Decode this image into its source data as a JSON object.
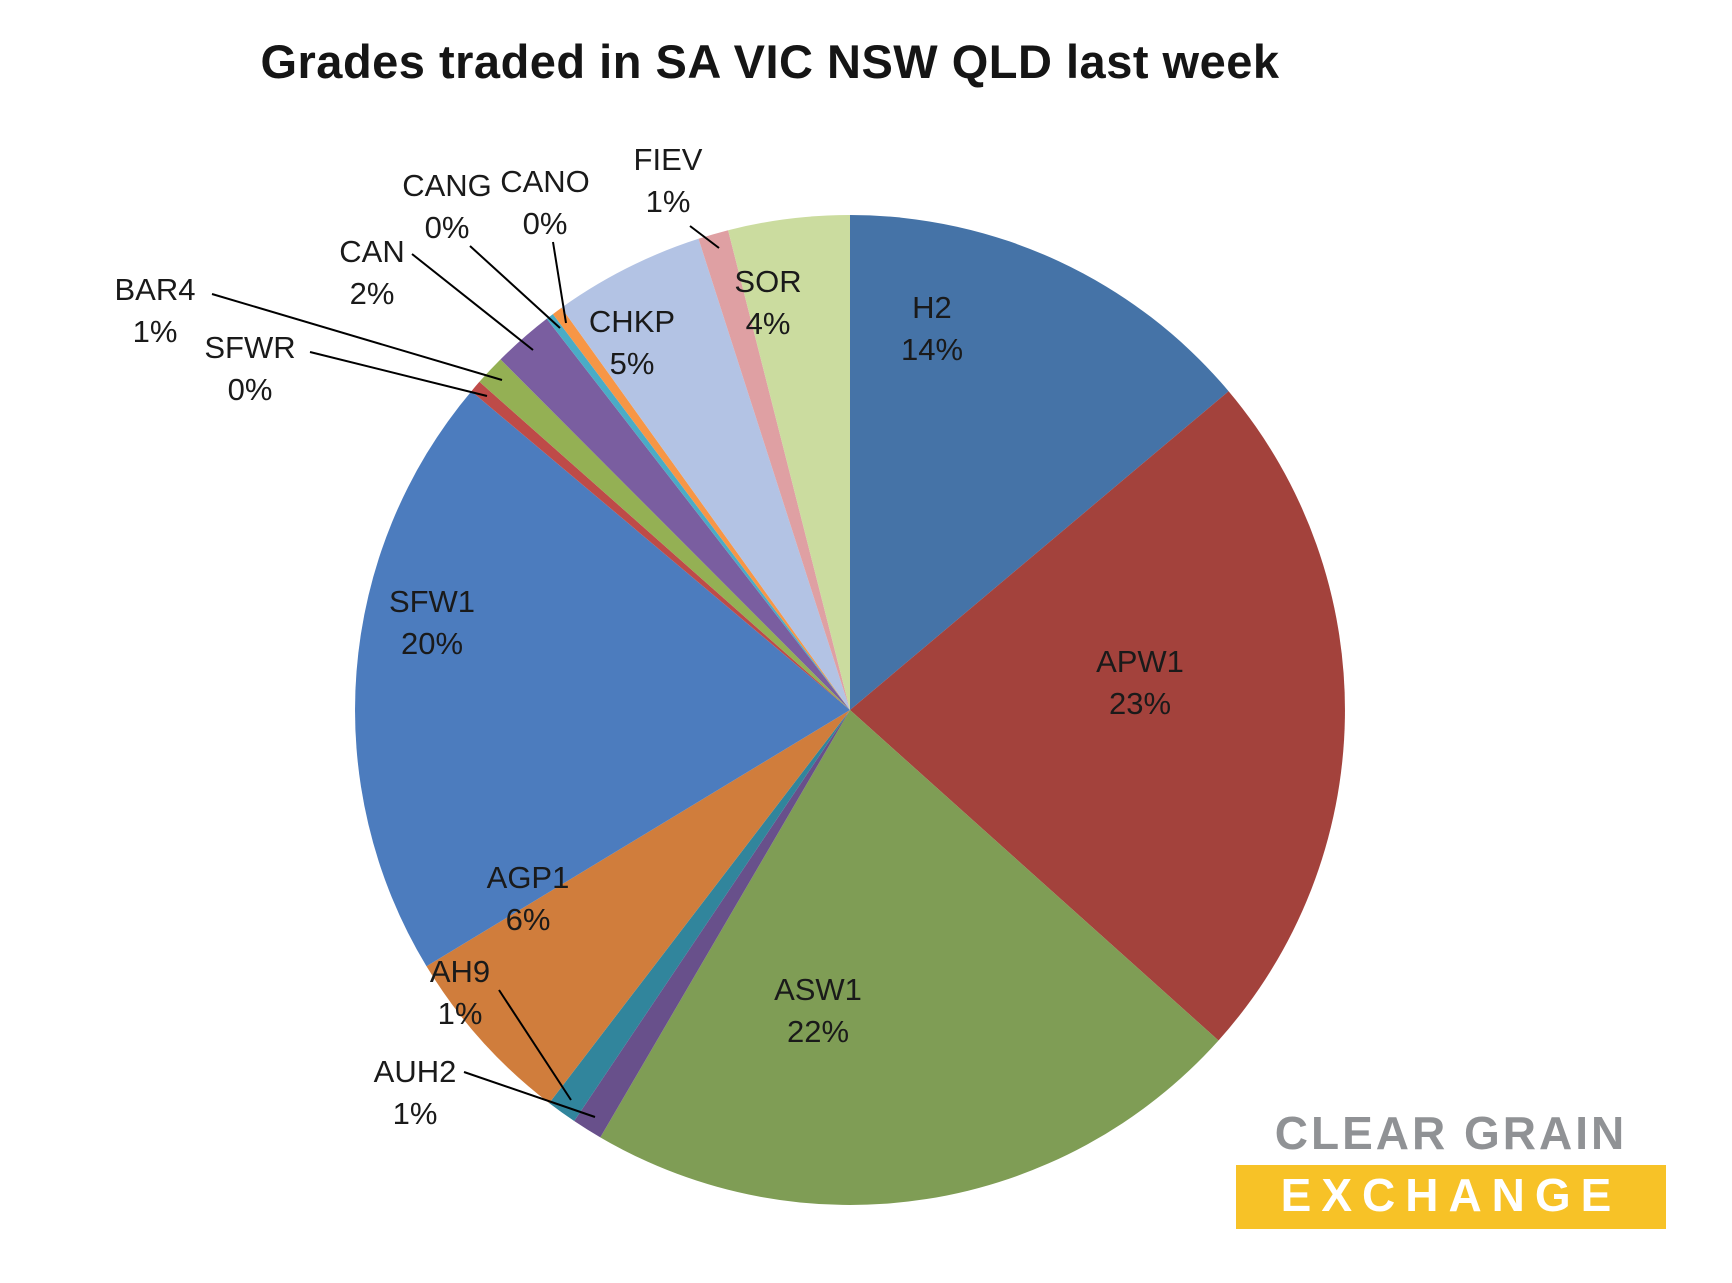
{
  "title": "Grades traded in SA VIC NSW QLD last week",
  "chart_data": {
    "type": "pie",
    "title": "Grades traded in SA VIC NSW QLD last week",
    "start_angle_deg": 0,
    "direction": "clockwise",
    "legend": "none",
    "label_style": "category name and percentage, small slices use leader lines",
    "slices": [
      {
        "label": "H2",
        "pct": 14,
        "pct_label": "14%",
        "weight": 14,
        "color": "#4573A7"
      },
      {
        "label": "APW1",
        "pct": 23,
        "pct_label": "23%",
        "weight": 23,
        "color": "#A3423C"
      },
      {
        "label": "ASW1",
        "pct": 22,
        "pct_label": "22%",
        "weight": 22,
        "color": "#7F9D55"
      },
      {
        "label": "AUH2",
        "pct": 1,
        "pct_label": "1%",
        "weight": 1,
        "color": "#68508B"
      },
      {
        "label": "AH9",
        "pct": 1,
        "pct_label": "1%",
        "weight": 1,
        "color": "#31859C"
      },
      {
        "label": "AGP1",
        "pct": 6,
        "pct_label": "6%",
        "weight": 6,
        "color": "#D07D3C"
      },
      {
        "label": "SFW1",
        "pct": 20,
        "pct_label": "20%",
        "weight": 20,
        "color": "#4C7CBE"
      },
      {
        "label": "SFWR",
        "pct": 0,
        "pct_label": "0%",
        "weight": 0.4,
        "color": "#BE4B48"
      },
      {
        "label": "BAR4",
        "pct": 1,
        "pct_label": "1%",
        "weight": 1,
        "color": "#94B054"
      },
      {
        "label": "CAN",
        "pct": 2,
        "pct_label": "2%",
        "weight": 2,
        "color": "#7A5EA0"
      },
      {
        "label": "CANG",
        "pct": 0,
        "pct_label": "0%",
        "weight": 0.25,
        "color": "#4AACC6"
      },
      {
        "label": "CANO",
        "pct": 0,
        "pct_label": "0%",
        "weight": 0.35,
        "color": "#F79646"
      },
      {
        "label": "CHKP",
        "pct": 5,
        "pct_label": "5%",
        "weight": 5,
        "color": "#B3C3E4"
      },
      {
        "label": "FIEV",
        "pct": 1,
        "pct_label": "1%",
        "weight": 1,
        "color": "#DFA0A3"
      },
      {
        "label": "SOR",
        "pct": 4,
        "pct_label": "4%",
        "weight": 4,
        "color": "#CBDC9F"
      }
    ]
  },
  "logo": {
    "line1": "CLEAR GRAIN",
    "line2": "EXCHANGE",
    "gray": "#909295",
    "yellow": "#F7C227",
    "white": "#FFFFFF"
  }
}
